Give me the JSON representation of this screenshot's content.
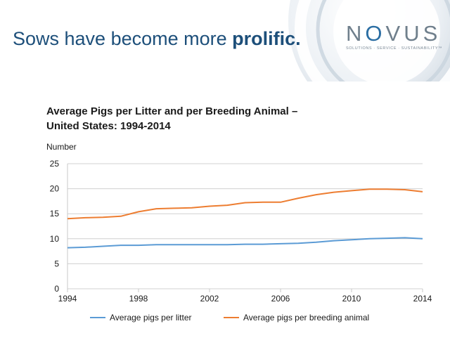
{
  "slide": {
    "headline_prefix": "Sows have become more ",
    "headline_bold": "prolific."
  },
  "logo": {
    "word_pre": "N",
    "word_o": "O",
    "word_post": "VUS",
    "tagline": "SOLUTIONS · SERVICE · SUSTAINABILITY™",
    "accent_color": "#2b6ea3"
  },
  "chart_data": {
    "type": "line",
    "title_lines": [
      "Average Pigs per Litter and per Breeding Animal –",
      "United States: 1994-2014"
    ],
    "ylabel": "Number",
    "xlabel": "",
    "xlim": [
      1994,
      2014
    ],
    "ylim": [
      0,
      25
    ],
    "yticks": [
      0,
      5,
      10,
      15,
      20,
      25
    ],
    "xticks": [
      1994,
      1998,
      2002,
      2006,
      2010,
      2014
    ],
    "grid": "horizontal",
    "legend": "bottom",
    "x": [
      1994,
      1995,
      1996,
      1997,
      1998,
      1999,
      2000,
      2001,
      2002,
      2003,
      2004,
      2005,
      2006,
      2007,
      2008,
      2009,
      2010,
      2011,
      2012,
      2013,
      2014
    ],
    "series": [
      {
        "name": "Average pigs per litter",
        "color": "#5b9bd5",
        "values": [
          8.2,
          8.3,
          8.5,
          8.7,
          8.7,
          8.8,
          8.8,
          8.8,
          8.8,
          8.8,
          8.9,
          8.9,
          9.0,
          9.1,
          9.3,
          9.6,
          9.8,
          10.0,
          10.1,
          10.2,
          10.0
        ]
      },
      {
        "name": "Average pigs per breeding animal",
        "color": "#ed7d31",
        "values": [
          14.0,
          14.2,
          14.3,
          14.5,
          15.4,
          16.0,
          16.1,
          16.2,
          16.5,
          16.7,
          17.2,
          17.3,
          17.3,
          18.1,
          18.8,
          19.3,
          19.6,
          19.9,
          19.9,
          19.8,
          19.4
        ]
      }
    ]
  }
}
